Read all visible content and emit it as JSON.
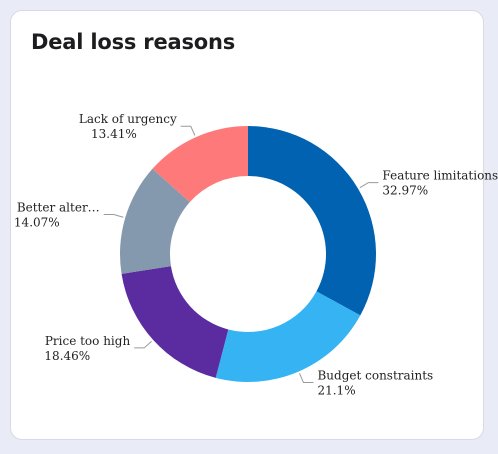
{
  "card": {
    "title": "Deal loss reasons"
  },
  "chart_data": {
    "type": "pie",
    "donut": true,
    "title": "Deal loss reasons",
    "legend": "none",
    "slices": [
      {
        "label": "Feature limitations",
        "value": 32.97,
        "value_label": "32.97%",
        "color": "#0062b1"
      },
      {
        "label": "Budget constraints",
        "value": 21.1,
        "value_label": "21.1%",
        "color": "#35b3f2"
      },
      {
        "label": "Price too high",
        "value": 18.46,
        "value_label": "18.46%",
        "color": "#5a2ca0"
      },
      {
        "label": "Better alter…",
        "value": 14.07,
        "value_label": "14.07%",
        "color": "#8499ad"
      },
      {
        "label": "Lack of urgency",
        "value": 13.41,
        "value_label": "13.41%",
        "color": "#fe7a7a"
      }
    ]
  }
}
